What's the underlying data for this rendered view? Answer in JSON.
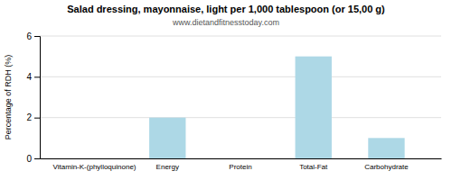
{
  "chart_data": {
    "type": "bar",
    "title": "Salad dressing, mayonnaise, light per 1,000 tablespoon (or 15,00 g)",
    "subtitle": "www.dietandfitnesstoday.com",
    "ylabel": "Percentage of RDH (%)",
    "categories": [
      "Vitamin-K-(phylloquinone)",
      "Energy",
      "Protein",
      "Total-Fat",
      "Carbohydrate"
    ],
    "values": [
      0,
      2.0,
      0,
      5.0,
      1.0
    ],
    "color": "#add8e6",
    "ylim": [
      0,
      6
    ],
    "yticks": [
      0,
      2,
      4,
      6
    ],
    "grid": true
  }
}
